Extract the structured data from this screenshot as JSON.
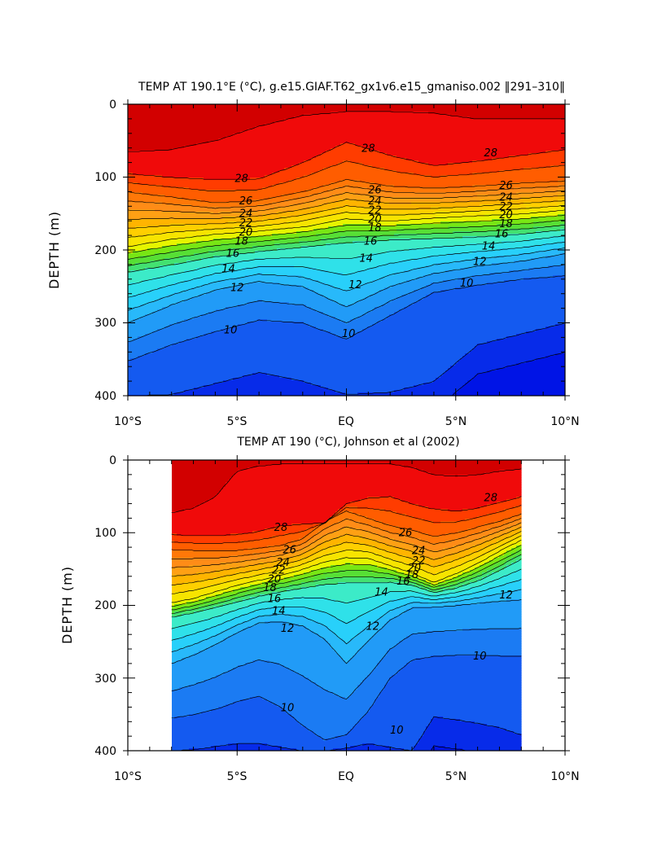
{
  "chart_data": [
    {
      "type": "contour",
      "title": "TEMP AT 190.1°E (°C), g.e15.GIAF.T62_gx1v6.e15_gmaniso.002 ‖291–310‖",
      "xlabel": "",
      "ylabel": "DEPTH (m)",
      "xlim": [
        -10,
        10
      ],
      "ylim": [
        400,
        0
      ],
      "x_ticks": [
        -10,
        -5,
        0,
        5,
        10
      ],
      "x_tick_labels": [
        "10°S",
        "5°S",
        "EQ",
        "5°N",
        "10°N"
      ],
      "y_ticks": [
        0,
        100,
        200,
        300,
        400
      ],
      "y_tick_labels": [
        "0",
        "100",
        "200",
        "300",
        "400"
      ],
      "data_xrange": [
        -10,
        10
      ],
      "contour_interval": 1,
      "levels": [
        8,
        9,
        10,
        11,
        12,
        13,
        14,
        15,
        16,
        17,
        18,
        19,
        20,
        21,
        22,
        23,
        24,
        25,
        26,
        27,
        28,
        29
      ],
      "contour_labels": [
        {
          "text": "28",
          "x": -4.8,
          "y": 102
        },
        {
          "text": "26",
          "x": -4.6,
          "y": 133
        },
        {
          "text": "24",
          "x": -4.6,
          "y": 150
        },
        {
          "text": "22",
          "x": -4.6,
          "y": 163
        },
        {
          "text": "20",
          "x": -4.6,
          "y": 176
        },
        {
          "text": "18",
          "x": -4.8,
          "y": 188
        },
        {
          "text": "16",
          "x": -5.2,
          "y": 205
        },
        {
          "text": "14",
          "x": -5.4,
          "y": 226
        },
        {
          "text": "12",
          "x": -5,
          "y": 252
        },
        {
          "text": "10",
          "x": -5.3,
          "y": 310
        },
        {
          "text": "28",
          "x": 1,
          "y": 61
        },
        {
          "text": "26",
          "x": 1.3,
          "y": 118
        },
        {
          "text": "24",
          "x": 1.3,
          "y": 133
        },
        {
          "text": "22",
          "x": 1.3,
          "y": 146
        },
        {
          "text": "20",
          "x": 1.3,
          "y": 158
        },
        {
          "text": "18",
          "x": 1.3,
          "y": 170
        },
        {
          "text": "16",
          "x": 1.1,
          "y": 188
        },
        {
          "text": "14",
          "x": 0.9,
          "y": 212
        },
        {
          "text": "12",
          "x": 0.4,
          "y": 248
        },
        {
          "text": "10",
          "x": 0.1,
          "y": 315
        },
        {
          "text": "28",
          "x": 6.6,
          "y": 67
        },
        {
          "text": "26",
          "x": 7.3,
          "y": 112
        },
        {
          "text": "24",
          "x": 7.3,
          "y": 128
        },
        {
          "text": "22",
          "x": 7.3,
          "y": 141
        },
        {
          "text": "20",
          "x": 7.3,
          "y": 152
        },
        {
          "text": "18",
          "x": 7.3,
          "y": 164
        },
        {
          "text": "16",
          "x": 7.1,
          "y": 178
        },
        {
          "text": "14",
          "x": 6.5,
          "y": 195
        },
        {
          "text": "12",
          "x": 6.1,
          "y": 216
        },
        {
          "text": "10",
          "x": 5.5,
          "y": 246
        }
      ]
    },
    {
      "type": "contour",
      "title": "TEMP AT 190 (°C), Johnson et al (2002)",
      "xlabel": "",
      "ylabel": "DEPTH (m)",
      "xlim": [
        -10,
        10
      ],
      "ylim": [
        400,
        0
      ],
      "x_ticks": [
        -10,
        -5,
        0,
        5,
        10
      ],
      "x_tick_labels": [
        "10°S",
        "5°S",
        "EQ",
        "5°N",
        "10°N"
      ],
      "y_ticks": [
        0,
        100,
        200,
        300,
        400
      ],
      "y_tick_labels": [
        "0",
        "100",
        "200",
        "300",
        "400"
      ],
      "data_xrange": [
        -8,
        8
      ],
      "contour_interval": 1,
      "levels": [
        8,
        9,
        10,
        11,
        12,
        13,
        14,
        15,
        16,
        17,
        18,
        19,
        20,
        21,
        22,
        23,
        24,
        25,
        26,
        27,
        28,
        29
      ],
      "contour_labels": [
        {
          "text": "28",
          "x": -3,
          "y": 93
        },
        {
          "text": "26",
          "x": -2.6,
          "y": 124
        },
        {
          "text": "24",
          "x": -2.9,
          "y": 141
        },
        {
          "text": "22",
          "x": -3.1,
          "y": 152
        },
        {
          "text": "20",
          "x": -3.3,
          "y": 164
        },
        {
          "text": "18",
          "x": -3.5,
          "y": 176
        },
        {
          "text": "16",
          "x": -3.3,
          "y": 191
        },
        {
          "text": "14",
          "x": -3.1,
          "y": 208
        },
        {
          "text": "12",
          "x": -2.7,
          "y": 232
        },
        {
          "text": "10",
          "x": -2.7,
          "y": 341
        },
        {
          "text": "26",
          "x": 2.7,
          "y": 100
        },
        {
          "text": "24",
          "x": 3.3,
          "y": 125
        },
        {
          "text": "22",
          "x": 3.3,
          "y": 139
        },
        {
          "text": "20",
          "x": 3.1,
          "y": 149
        },
        {
          "text": "18",
          "x": 3,
          "y": 158
        },
        {
          "text": "16",
          "x": 2.6,
          "y": 167
        },
        {
          "text": "14",
          "x": 1.6,
          "y": 182
        },
        {
          "text": "12",
          "x": 1.2,
          "y": 229
        },
        {
          "text": "10",
          "x": 2.3,
          "y": 372
        },
        {
          "text": "28",
          "x": 6.6,
          "y": 52
        },
        {
          "text": "12",
          "x": 7.3,
          "y": 186
        },
        {
          "text": "10",
          "x": 6.1,
          "y": 270
        }
      ]
    }
  ]
}
